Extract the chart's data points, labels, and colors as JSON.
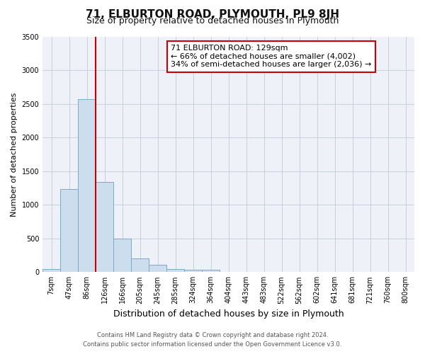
{
  "title": "71, ELBURTON ROAD, PLYMOUTH, PL9 8JH",
  "subtitle": "Size of property relative to detached houses in Plymouth",
  "xlabel": "Distribution of detached houses by size in Plymouth",
  "ylabel": "Number of detached properties",
  "bin_labels": [
    "7sqm",
    "47sqm",
    "86sqm",
    "126sqm",
    "166sqm",
    "205sqm",
    "245sqm",
    "285sqm",
    "324sqm",
    "364sqm",
    "404sqm",
    "443sqm",
    "483sqm",
    "522sqm",
    "562sqm",
    "602sqm",
    "641sqm",
    "681sqm",
    "721sqm",
    "760sqm",
    "800sqm"
  ],
  "bin_values": [
    50,
    1230,
    2570,
    1340,
    500,
    200,
    110,
    50,
    30,
    30,
    0,
    0,
    0,
    0,
    0,
    0,
    0,
    0,
    0,
    0,
    0
  ],
  "bar_color": "#ccdded",
  "bar_edge_color": "#7aaac8",
  "bar_width": 1.0,
  "property_line_color": "#cc0000",
  "property_line_index": 3,
  "ylim": [
    0,
    3500
  ],
  "yticks": [
    0,
    500,
    1000,
    1500,
    2000,
    2500,
    3000,
    3500
  ],
  "annotation_text": "71 ELBURTON ROAD: 129sqm\n← 66% of detached houses are smaller (4,002)\n34% of semi-detached houses are larger (2,036) →",
  "annotation_box_color": "#ffffff",
  "annotation_box_edge_color": "#cc0000",
  "footer_line1": "Contains HM Land Registry data © Crown copyright and database right 2024.",
  "footer_line2": "Contains public sector information licensed under the Open Government Licence v3.0.",
  "plot_bg_color": "#eef2f8",
  "fig_bg_color": "#ffffff",
  "grid_color": "#c8d0dc"
}
